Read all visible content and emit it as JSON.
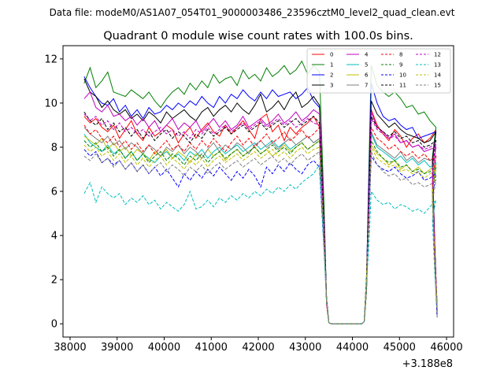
{
  "chart_data": {
    "type": "line",
    "suptitle": "Data file: modeM0/AS1A07_054T01_9000003486_23596cztM0_level2_quad_clean.evt",
    "title": "Quadrant 0 module wise count rates with 100.0s bins.",
    "xlabel": "",
    "ylabel": "",
    "x_offset_label": "+3.188e8",
    "xlim": [
      37850,
      46150
    ],
    "ylim": [
      -0.6,
      12.6
    ],
    "x_ticks": [
      38000,
      39000,
      40000,
      41000,
      42000,
      43000,
      44000,
      45000,
      46000
    ],
    "y_ticks": [
      0,
      2,
      4,
      6,
      8,
      10,
      12
    ],
    "legend_location": "top-right",
    "series": [
      {
        "name": "0",
        "color": "#ff0000",
        "style": "solid",
        "seg1": [
          9.4,
          9.1,
          9.3,
          8.9,
          8.7,
          9.0,
          8.4,
          8.8,
          9.2,
          8.6,
          8.3,
          8.9,
          8.5,
          8.7,
          9.0,
          8.8,
          8.2,
          8.6,
          8.9,
          8.4,
          8.8,
          9.1,
          8.7,
          8.5,
          9.0,
          8.6,
          8.9,
          9.2,
          8.8,
          8.4,
          9.3,
          9.5,
          8.7,
          9.0,
          8.3,
          8.9,
          8.6,
          8.9,
          9.1,
          9.4,
          8.9
        ],
        "seg2": [
          9.7,
          9.0,
          8.6,
          8.3,
          8.8,
          8.5,
          8.0,
          8.4,
          8.6,
          8.2,
          8.4,
          8.8
        ]
      },
      {
        "name": "1",
        "color": "#008000",
        "style": "solid",
        "seg1": [
          10.9,
          11.6,
          10.7,
          11.0,
          11.4,
          10.5,
          10.4,
          10.3,
          10.6,
          10.4,
          10.2,
          10.5,
          10.1,
          9.8,
          10.2,
          10.5,
          10.7,
          10.4,
          10.9,
          10.6,
          11.0,
          10.7,
          11.3,
          10.9,
          11.1,
          11.2,
          10.8,
          11.5,
          11.1,
          11.3,
          11.0,
          11.6,
          11.2,
          11.4,
          11.7,
          11.3,
          11.5,
          11.9,
          11.3,
          11.7,
          11.4
        ],
        "seg2": [
          11.7,
          10.8,
          10.5,
          10.3,
          10.5,
          10.2,
          9.8,
          9.9,
          9.5,
          9.6,
          9.2,
          8.9
        ]
      },
      {
        "name": "2",
        "color": "#0000ff",
        "style": "solid",
        "seg1": [
          11.2,
          10.7,
          10.3,
          10.0,
          9.9,
          10.2,
          9.6,
          9.9,
          9.4,
          9.7,
          9.3,
          9.8,
          9.5,
          9.6,
          9.9,
          9.7,
          10.0,
          9.8,
          10.1,
          9.9,
          10.3,
          10.0,
          9.8,
          10.3,
          10.0,
          10.4,
          10.2,
          10.6,
          10.3,
          10.1,
          10.5,
          10.2,
          10.6,
          10.3,
          10.4,
          10.5,
          10.2,
          10.4,
          10.7,
          10.1,
          9.8
        ],
        "seg2": [
          10.9,
          10.0,
          9.4,
          9.2,
          9.3,
          9.0,
          8.8,
          8.9,
          8.4,
          8.5,
          8.6,
          8.7
        ]
      },
      {
        "name": "3",
        "color": "#000000",
        "style": "solid",
        "seg1": [
          11.1,
          10.5,
          10.3,
          9.8,
          10.1,
          9.7,
          9.5,
          9.7,
          9.3,
          9.5,
          9.2,
          9.6,
          9.4,
          9.1,
          9.6,
          9.3,
          9.5,
          9.7,
          9.4,
          9.2,
          9.6,
          9.8,
          9.4,
          9.7,
          9.9,
          9.6,
          10.0,
          9.7,
          9.5,
          9.9,
          10.4,
          9.6,
          9.8,
          10.1,
          9.7,
          10.2,
          10.5,
          9.8,
          10.0,
          10.3,
          9.9
        ],
        "seg2": [
          10.1,
          9.5,
          9.2,
          8.9,
          9.1,
          8.8,
          8.6,
          8.5,
          8.4,
          8.2,
          8.3,
          8.7
        ]
      },
      {
        "name": "4",
        "color": "#bf00bf",
        "style": "solid",
        "seg1": [
          10.2,
          10.5,
          9.8,
          9.6,
          9.9,
          9.4,
          9.5,
          9.2,
          9.4,
          9.0,
          9.3,
          8.9,
          9.2,
          8.7,
          9.0,
          9.3,
          8.8,
          9.1,
          8.9,
          9.2,
          8.7,
          9.0,
          9.3,
          8.9,
          9.2,
          8.8,
          9.0,
          9.4,
          8.9,
          9.1,
          9.3,
          9.0,
          9.2,
          9.5,
          9.1,
          9.3,
          9.6,
          9.2,
          9.4,
          9.7,
          9.5
        ],
        "seg2": [
          9.6,
          8.9,
          8.7,
          8.4,
          8.6,
          8.2,
          8.3,
          8.0,
          8.1,
          7.8,
          7.9,
          8.0
        ]
      },
      {
        "name": "5",
        "color": "#00bfbf",
        "style": "solid",
        "seg1": [
          8.6,
          8.2,
          8.0,
          7.8,
          8.1,
          7.7,
          7.9,
          7.5,
          7.8,
          7.4,
          7.7,
          7.5,
          7.3,
          7.6,
          7.8,
          7.5,
          7.7,
          7.4,
          7.8,
          7.6,
          7.9,
          7.5,
          7.8,
          8.0,
          7.7,
          7.9,
          8.1,
          7.8,
          8.0,
          8.2,
          7.9,
          8.1,
          8.3,
          8.0,
          8.2,
          7.9,
          8.1,
          8.3,
          8.5,
          8.2,
          8.4
        ],
        "seg2": [
          8.6,
          8.0,
          7.8,
          7.6,
          7.4,
          7.6,
          7.3,
          7.5,
          7.2,
          7.4,
          7.1,
          7.3
        ]
      },
      {
        "name": "6",
        "color": "#bfbf00",
        "style": "solid",
        "seg1": [
          8.5,
          8.3,
          8.1,
          8.4,
          7.9,
          8.2,
          7.8,
          8.0,
          7.6,
          7.9,
          7.7,
          7.4,
          7.8,
          7.6,
          7.9,
          7.5,
          7.8,
          7.6,
          7.3,
          7.7,
          7.5,
          7.9,
          7.6,
          7.8,
          7.4,
          7.7,
          7.9,
          7.6,
          7.8,
          8.0,
          7.7,
          7.9,
          7.6,
          7.8,
          8.1,
          7.8,
          8.0,
          8.2,
          7.9,
          8.1,
          8.3
        ],
        "seg2": [
          8.1,
          7.7,
          7.5,
          7.2,
          7.4,
          7.0,
          7.2,
          6.9,
          7.1,
          6.8,
          7.0,
          7.2
        ]
      },
      {
        "name": "7",
        "color": "#808080",
        "style": "solid",
        "seg1": [
          8.9,
          8.6,
          8.4,
          8.2,
          8.5,
          8.1,
          8.3,
          7.9,
          8.2,
          8.0,
          7.7,
          8.1,
          7.9,
          7.6,
          8.0,
          7.8,
          8.1,
          7.7,
          8.0,
          7.8,
          7.5,
          7.9,
          8.2,
          7.8,
          8.1,
          7.9,
          8.2,
          8.0,
          7.7,
          8.1,
          8.3,
          8.0,
          8.2,
          7.9,
          8.2,
          8.4,
          8.1,
          8.3,
          8.5,
          8.2,
          8.4
        ],
        "seg2": [
          8.7,
          8.1,
          7.9,
          7.7,
          7.5,
          7.8,
          7.4,
          7.6,
          7.3,
          7.5,
          7.4,
          7.6
        ]
      },
      {
        "name": "8",
        "color": "#ff0000",
        "style": "dashed",
        "seg1": [
          9.0,
          8.6,
          8.8,
          8.4,
          8.2,
          8.5,
          8.0,
          8.3,
          7.9,
          8.2,
          7.8,
          8.1,
          7.7,
          8.0,
          8.3,
          7.9,
          8.1,
          7.8,
          8.2,
          7.9,
          8.3,
          8.0,
          8.4,
          8.1,
          7.8,
          8.2,
          8.5,
          8.1,
          8.4,
          8.0,
          8.3,
          8.6,
          8.2,
          8.4,
          8.7,
          8.3,
          8.5,
          8.8,
          8.4,
          8.6,
          8.9
        ],
        "seg2": [
          8.9,
          8.4,
          8.2,
          7.9,
          8.1,
          7.8,
          7.6,
          7.8,
          7.5,
          7.7,
          7.4,
          7.6
        ]
      },
      {
        "name": "9",
        "color": "#008000",
        "style": "dashed",
        "seg1": [
          8.3,
          8.0,
          8.2,
          7.8,
          8.0,
          7.6,
          7.9,
          7.5,
          7.8,
          7.4,
          7.7,
          7.3,
          7.6,
          7.8,
          7.4,
          7.7,
          7.5,
          7.2,
          7.6,
          7.4,
          7.7,
          7.3,
          7.6,
          7.8,
          7.5,
          7.7,
          7.9,
          7.6,
          7.8,
          8.0,
          7.7,
          7.9,
          8.1,
          7.8,
          8.0,
          7.7,
          8.0,
          8.2,
          7.9,
          8.1,
          8.3
        ],
        "seg2": [
          8.3,
          7.8,
          7.5,
          7.3,
          7.4,
          7.1,
          7.2,
          6.9,
          7.0,
          6.8,
          6.9,
          7.1
        ]
      },
      {
        "name": "10",
        "color": "#0000ff",
        "style": "dashed",
        "seg1": [
          7.9,
          7.6,
          7.8,
          7.3,
          7.5,
          7.2,
          7.4,
          7.0,
          7.3,
          6.9,
          7.2,
          6.8,
          7.1,
          6.7,
          7.0,
          6.6,
          6.2,
          6.8,
          6.5,
          6.9,
          6.6,
          7.0,
          6.7,
          7.1,
          6.8,
          6.5,
          6.9,
          6.6,
          7.0,
          6.7,
          6.2,
          7.1,
          6.8,
          7.2,
          6.9,
          7.3,
          7.0,
          6.8,
          7.2,
          7.4,
          7.1
        ],
        "seg2": [
          7.6,
          7.2,
          7.0,
          6.9,
          7.1,
          6.8,
          6.6,
          6.7,
          6.9,
          6.5,
          6.6,
          6.8
        ]
      },
      {
        "name": "11",
        "color": "#000000",
        "style": "dashed",
        "seg1": [
          9.6,
          9.2,
          9.0,
          9.3,
          8.8,
          9.1,
          8.7,
          8.9,
          8.5,
          8.8,
          8.4,
          8.7,
          8.3,
          8.6,
          8.8,
          8.4,
          8.7,
          8.5,
          8.2,
          8.6,
          8.4,
          8.8,
          8.5,
          8.7,
          8.9,
          8.6,
          8.8,
          9.0,
          8.7,
          8.9,
          9.1,
          8.8,
          9.0,
          9.2,
          8.9,
          9.1,
          9.3,
          9.0,
          9.2,
          9.4,
          9.1
        ],
        "seg2": [
          9.4,
          8.9,
          8.7,
          8.5,
          8.7,
          8.4,
          8.5,
          8.2,
          8.3,
          8.0,
          8.1,
          8.3
        ]
      },
      {
        "name": "12",
        "color": "#bf00bf",
        "style": "dashed",
        "seg1": [
          9.5,
          9.2,
          9.4,
          9.0,
          9.2,
          8.8,
          9.1,
          8.7,
          8.9,
          8.6,
          8.8,
          8.5,
          8.7,
          8.9,
          8.6,
          8.8,
          8.5,
          8.7,
          8.4,
          8.8,
          8.6,
          8.9,
          8.6,
          8.8,
          9.0,
          8.7,
          8.9,
          9.1,
          8.8,
          9.0,
          9.2,
          8.9,
          9.1,
          9.3,
          9.0,
          9.2,
          8.9,
          9.1,
          9.3,
          9.1,
          9.0
        ],
        "seg2": [
          9.3,
          8.8,
          8.6,
          8.4,
          8.5,
          8.2,
          8.3,
          8.0,
          8.1,
          7.9,
          8.0,
          8.2
        ]
      },
      {
        "name": "13",
        "color": "#00bfbf",
        "style": "dashed",
        "seg1": [
          5.9,
          6.4,
          5.5,
          6.2,
          5.9,
          5.7,
          5.9,
          5.4,
          5.7,
          5.5,
          5.8,
          5.4,
          5.6,
          5.2,
          5.5,
          5.3,
          5.1,
          5.4,
          6.0,
          5.2,
          5.3,
          5.6,
          5.3,
          5.7,
          5.5,
          5.8,
          5.6,
          5.9,
          5.7,
          6.0,
          5.8,
          6.1,
          5.9,
          6.2,
          6.0,
          6.3,
          6.1,
          6.4,
          6.6,
          6.8,
          7.2
        ],
        "seg2": [
          6.0,
          5.6,
          5.4,
          5.5,
          5.2,
          5.4,
          5.3,
          5.1,
          5.2,
          5.0,
          5.3,
          5.6
        ]
      },
      {
        "name": "14",
        "color": "#bfbf00",
        "style": "dashed",
        "seg1": [
          8.1,
          7.8,
          8.0,
          7.6,
          7.8,
          7.4,
          7.7,
          7.3,
          7.6,
          7.2,
          7.5,
          7.1,
          7.4,
          7.6,
          7.2,
          7.5,
          7.3,
          7.0,
          7.4,
          7.2,
          7.5,
          7.1,
          7.4,
          7.6,
          7.3,
          7.5,
          7.7,
          7.4,
          7.6,
          7.8,
          7.5,
          7.7,
          7.9,
          7.6,
          7.8,
          7.5,
          7.8,
          8.0,
          7.7,
          7.9,
          8.0
        ],
        "seg2": [
          8.0,
          7.5,
          7.3,
          7.1,
          7.2,
          6.9,
          7.0,
          6.8,
          6.9,
          6.6,
          6.8,
          7.0
        ]
      },
      {
        "name": "15",
        "color": "#808080",
        "style": "dashed",
        "seg1": [
          7.6,
          7.4,
          7.7,
          7.3,
          7.5,
          7.1,
          7.4,
          7.0,
          7.3,
          6.9,
          7.2,
          6.8,
          7.1,
          7.3,
          6.9,
          7.2,
          7.0,
          6.7,
          7.1,
          6.9,
          7.2,
          6.8,
          7.1,
          7.3,
          7.0,
          7.2,
          7.4,
          7.1,
          7.3,
          7.5,
          7.2,
          7.4,
          7.6,
          7.3,
          7.5,
          7.2,
          7.5,
          7.7,
          7.4,
          7.6,
          7.8
        ],
        "seg2": [
          7.8,
          7.2,
          6.9,
          6.7,
          6.8,
          6.5,
          6.6,
          6.3,
          6.4,
          6.2,
          6.3,
          6.5
        ]
      }
    ],
    "time_grid": {
      "seg1_start": 38300,
      "seg1_step": 125,
      "drop_x": [
        43400,
        43450,
        43500
      ],
      "gap_x": [
        43550,
        44200
      ],
      "seg2_start": 44400,
      "seg2_step": 125,
      "end_x": 45800
    }
  }
}
